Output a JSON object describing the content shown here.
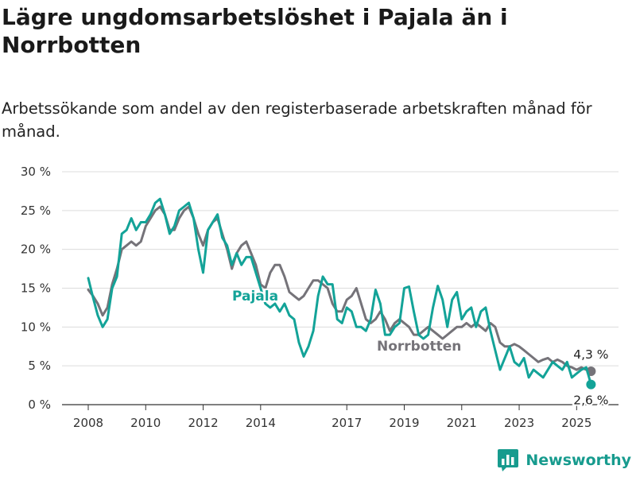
{
  "colors": {
    "pajala": "#13a398",
    "norrbotten": "#757379",
    "grid": "#dcdcdc",
    "brand": "#179b8e"
  },
  "header": {
    "title": "Lägre ungdomsarbetslöshet i Pajala än i Norrbotten",
    "subtitle": "Arbetssökande som andel av den registerbaserade arbetskraften månad för månad."
  },
  "brand": {
    "name": "Newsworthy",
    "icon": "bar-chart-icon"
  },
  "chart_data": {
    "type": "line",
    "title": "Lägre ungdomsarbetslöshet i Pajala än i Norrbotten",
    "subtitle": "Arbetssökande som andel av den registerbaserade arbetskraften månad för månad.",
    "xlabel": "",
    "ylabel": "",
    "x_ticks": [
      "2008",
      "2010",
      "2012",
      "2014",
      "2017",
      "2019",
      "2021",
      "2023",
      "2025"
    ],
    "y_ticks": [
      "0 %",
      "5 %",
      "10 %",
      "15 %",
      "20 %",
      "25 %",
      "30 %"
    ],
    "ylim": [
      0,
      30
    ],
    "grid": true,
    "legend": "inline labels",
    "end_labels": {
      "norrbotten": "4,3 %",
      "pajala": "2,6 %"
    },
    "series": [
      {
        "name": "Pajala",
        "points": [
          [
            "2008-01",
            16.3
          ],
          [
            "2008-03",
            13.8
          ],
          [
            "2008-05",
            11.5
          ],
          [
            "2008-07",
            10.0
          ],
          [
            "2008-09",
            11.0
          ],
          [
            "2008-11",
            15.0
          ],
          [
            "2009-01",
            16.5
          ],
          [
            "2009-03",
            22.0
          ],
          [
            "2009-05",
            22.5
          ],
          [
            "2009-07",
            24.0
          ],
          [
            "2009-09",
            22.5
          ],
          [
            "2009-11",
            23.5
          ],
          [
            "2010-01",
            23.5
          ],
          [
            "2010-03",
            24.5
          ],
          [
            "2010-05",
            26.0
          ],
          [
            "2010-07",
            26.5
          ],
          [
            "2010-09",
            24.5
          ],
          [
            "2010-11",
            22.0
          ],
          [
            "2011-01",
            23.0
          ],
          [
            "2011-03",
            25.0
          ],
          [
            "2011-05",
            25.5
          ],
          [
            "2011-07",
            26.0
          ],
          [
            "2011-09",
            24.0
          ],
          [
            "2011-11",
            20.0
          ],
          [
            "2012-01",
            17.0
          ],
          [
            "2012-03",
            22.5
          ],
          [
            "2012-05",
            23.5
          ],
          [
            "2012-07",
            24.5
          ],
          [
            "2012-09",
            21.5
          ],
          [
            "2012-11",
            20.5
          ],
          [
            "2013-01",
            18.0
          ],
          [
            "2013-03",
            19.5
          ],
          [
            "2013-05",
            18.0
          ],
          [
            "2013-07",
            19.0
          ],
          [
            "2013-09",
            19.0
          ],
          [
            "2013-11",
            17.0
          ],
          [
            "2014-01",
            15.0
          ],
          [
            "2014-03",
            13.0
          ],
          [
            "2014-05",
            12.5
          ],
          [
            "2014-07",
            13.0
          ],
          [
            "2014-09",
            12.0
          ],
          [
            "2014-11",
            13.0
          ],
          [
            "2015-01",
            11.5
          ],
          [
            "2015-03",
            11.0
          ],
          [
            "2015-05",
            8.0
          ],
          [
            "2015-07",
            6.2
          ],
          [
            "2015-09",
            7.5
          ],
          [
            "2015-11",
            9.5
          ],
          [
            "2016-01",
            14.0
          ],
          [
            "2016-03",
            16.5
          ],
          [
            "2016-05",
            15.5
          ],
          [
            "2016-07",
            15.5
          ],
          [
            "2016-09",
            11.0
          ],
          [
            "2016-11",
            10.5
          ],
          [
            "2017-01",
            12.5
          ],
          [
            "2017-03",
            12.0
          ],
          [
            "2017-05",
            10.0
          ],
          [
            "2017-07",
            10.0
          ],
          [
            "2017-09",
            9.5
          ],
          [
            "2017-11",
            11.0
          ],
          [
            "2018-01",
            14.8
          ],
          [
            "2018-03",
            13.0
          ],
          [
            "2018-05",
            9.0
          ],
          [
            "2018-07",
            9.0
          ],
          [
            "2018-09",
            10.0
          ],
          [
            "2018-11",
            10.5
          ],
          [
            "2019-01",
            15.0
          ],
          [
            "2019-03",
            15.2
          ],
          [
            "2019-05",
            12.0
          ],
          [
            "2019-07",
            9.0
          ],
          [
            "2019-09",
            8.5
          ],
          [
            "2019-11",
            9.0
          ],
          [
            "2020-01",
            12.5
          ],
          [
            "2020-03",
            15.3
          ],
          [
            "2020-05",
            13.5
          ],
          [
            "2020-07",
            10.0
          ],
          [
            "2020-09",
            13.5
          ],
          [
            "2020-11",
            14.5
          ],
          [
            "2021-01",
            11.0
          ],
          [
            "2021-03",
            12.0
          ],
          [
            "2021-05",
            12.5
          ],
          [
            "2021-07",
            10.0
          ],
          [
            "2021-09",
            12.0
          ],
          [
            "2021-11",
            12.5
          ],
          [
            "2022-01",
            9.5
          ],
          [
            "2022-03",
            7.0
          ],
          [
            "2022-05",
            4.5
          ],
          [
            "2022-07",
            6.0
          ],
          [
            "2022-09",
            7.5
          ],
          [
            "2022-11",
            5.5
          ],
          [
            "2023-01",
            5.0
          ],
          [
            "2023-03",
            6.0
          ],
          [
            "2023-05",
            3.5
          ],
          [
            "2023-07",
            4.5
          ],
          [
            "2023-09",
            4.0
          ],
          [
            "2023-11",
            3.5
          ],
          [
            "2024-01",
            4.5
          ],
          [
            "2024-03",
            5.5
          ],
          [
            "2024-05",
            5.0
          ],
          [
            "2024-07",
            4.5
          ],
          [
            "2024-09",
            5.5
          ],
          [
            "2024-11",
            3.5
          ],
          [
            "2025-01",
            4.0
          ],
          [
            "2025-03",
            4.5
          ],
          [
            "2025-05",
            4.8
          ],
          [
            "2025-07",
            2.6
          ]
        ]
      },
      {
        "name": "Norrbotten",
        "points": [
          [
            "2008-01",
            14.8
          ],
          [
            "2008-03",
            14.0
          ],
          [
            "2008-05",
            13.0
          ],
          [
            "2008-07",
            11.5
          ],
          [
            "2008-09",
            12.5
          ],
          [
            "2008-11",
            15.5
          ],
          [
            "2009-01",
            17.5
          ],
          [
            "2009-03",
            20.0
          ],
          [
            "2009-05",
            20.5
          ],
          [
            "2009-07",
            21.0
          ],
          [
            "2009-09",
            20.5
          ],
          [
            "2009-11",
            21.0
          ],
          [
            "2010-01",
            23.0
          ],
          [
            "2010-03",
            24.0
          ],
          [
            "2010-05",
            25.0
          ],
          [
            "2010-07",
            25.5
          ],
          [
            "2010-09",
            24.5
          ],
          [
            "2010-11",
            22.5
          ],
          [
            "2011-01",
            22.5
          ],
          [
            "2011-03",
            24.0
          ],
          [
            "2011-05",
            25.0
          ],
          [
            "2011-07",
            25.5
          ],
          [
            "2011-09",
            24.0
          ],
          [
            "2011-11",
            22.0
          ],
          [
            "2012-01",
            20.5
          ],
          [
            "2012-03",
            22.5
          ],
          [
            "2012-05",
            23.5
          ],
          [
            "2012-07",
            24.0
          ],
          [
            "2012-09",
            22.0
          ],
          [
            "2012-11",
            20.0
          ],
          [
            "2013-01",
            17.5
          ],
          [
            "2013-03",
            19.5
          ],
          [
            "2013-05",
            20.5
          ],
          [
            "2013-07",
            21.0
          ],
          [
            "2013-09",
            19.5
          ],
          [
            "2013-11",
            18.0
          ],
          [
            "2014-01",
            15.5
          ],
          [
            "2014-03",
            15.0
          ],
          [
            "2014-05",
            17.0
          ],
          [
            "2014-07",
            18.0
          ],
          [
            "2014-09",
            18.0
          ],
          [
            "2014-11",
            16.5
          ],
          [
            "2015-01",
            14.5
          ],
          [
            "2015-03",
            14.0
          ],
          [
            "2015-05",
            13.5
          ],
          [
            "2015-07",
            14.0
          ],
          [
            "2015-09",
            15.0
          ],
          [
            "2015-11",
            16.0
          ],
          [
            "2016-01",
            16.0
          ],
          [
            "2016-03",
            15.5
          ],
          [
            "2016-05",
            15.0
          ],
          [
            "2016-07",
            13.0
          ],
          [
            "2016-09",
            12.0
          ],
          [
            "2016-11",
            12.0
          ],
          [
            "2017-01",
            13.5
          ],
          [
            "2017-03",
            14.0
          ],
          [
            "2017-05",
            15.0
          ],
          [
            "2017-07",
            13.0
          ],
          [
            "2017-09",
            11.0
          ],
          [
            "2017-11",
            10.5
          ],
          [
            "2018-01",
            11.0
          ],
          [
            "2018-03",
            12.0
          ],
          [
            "2018-05",
            11.0
          ],
          [
            "2018-07",
            9.5
          ],
          [
            "2018-09",
            10.5
          ],
          [
            "2018-11",
            11.0
          ],
          [
            "2019-01",
            10.5
          ],
          [
            "2019-03",
            10.0
          ],
          [
            "2019-05",
            9.0
          ],
          [
            "2019-07",
            9.0
          ],
          [
            "2019-09",
            9.5
          ],
          [
            "2019-11",
            10.0
          ],
          [
            "2020-01",
            9.5
          ],
          [
            "2020-03",
            9.0
          ],
          [
            "2020-05",
            8.5
          ],
          [
            "2020-07",
            9.0
          ],
          [
            "2020-09",
            9.5
          ],
          [
            "2020-11",
            10.0
          ],
          [
            "2021-01",
            10.0
          ],
          [
            "2021-03",
            10.5
          ],
          [
            "2021-05",
            10.0
          ],
          [
            "2021-07",
            10.5
          ],
          [
            "2021-09",
            10.0
          ],
          [
            "2021-11",
            9.5
          ],
          [
            "2022-01",
            10.5
          ],
          [
            "2022-03",
            10.0
          ],
          [
            "2022-05",
            8.0
          ],
          [
            "2022-07",
            7.5
          ],
          [
            "2022-09",
            7.5
          ],
          [
            "2022-11",
            7.8
          ],
          [
            "2023-01",
            7.5
          ],
          [
            "2023-03",
            7.0
          ],
          [
            "2023-05",
            6.5
          ],
          [
            "2023-07",
            6.0
          ],
          [
            "2023-09",
            5.5
          ],
          [
            "2023-11",
            5.8
          ],
          [
            "2024-01",
            6.0
          ],
          [
            "2024-03",
            5.5
          ],
          [
            "2024-05",
            5.8
          ],
          [
            "2024-07",
            5.5
          ],
          [
            "2024-09",
            5.0
          ],
          [
            "2024-11",
            4.8
          ],
          [
            "2025-01",
            4.5
          ],
          [
            "2025-03",
            4.8
          ],
          [
            "2025-05",
            4.5
          ],
          [
            "2025-07",
            4.3
          ]
        ]
      }
    ]
  }
}
